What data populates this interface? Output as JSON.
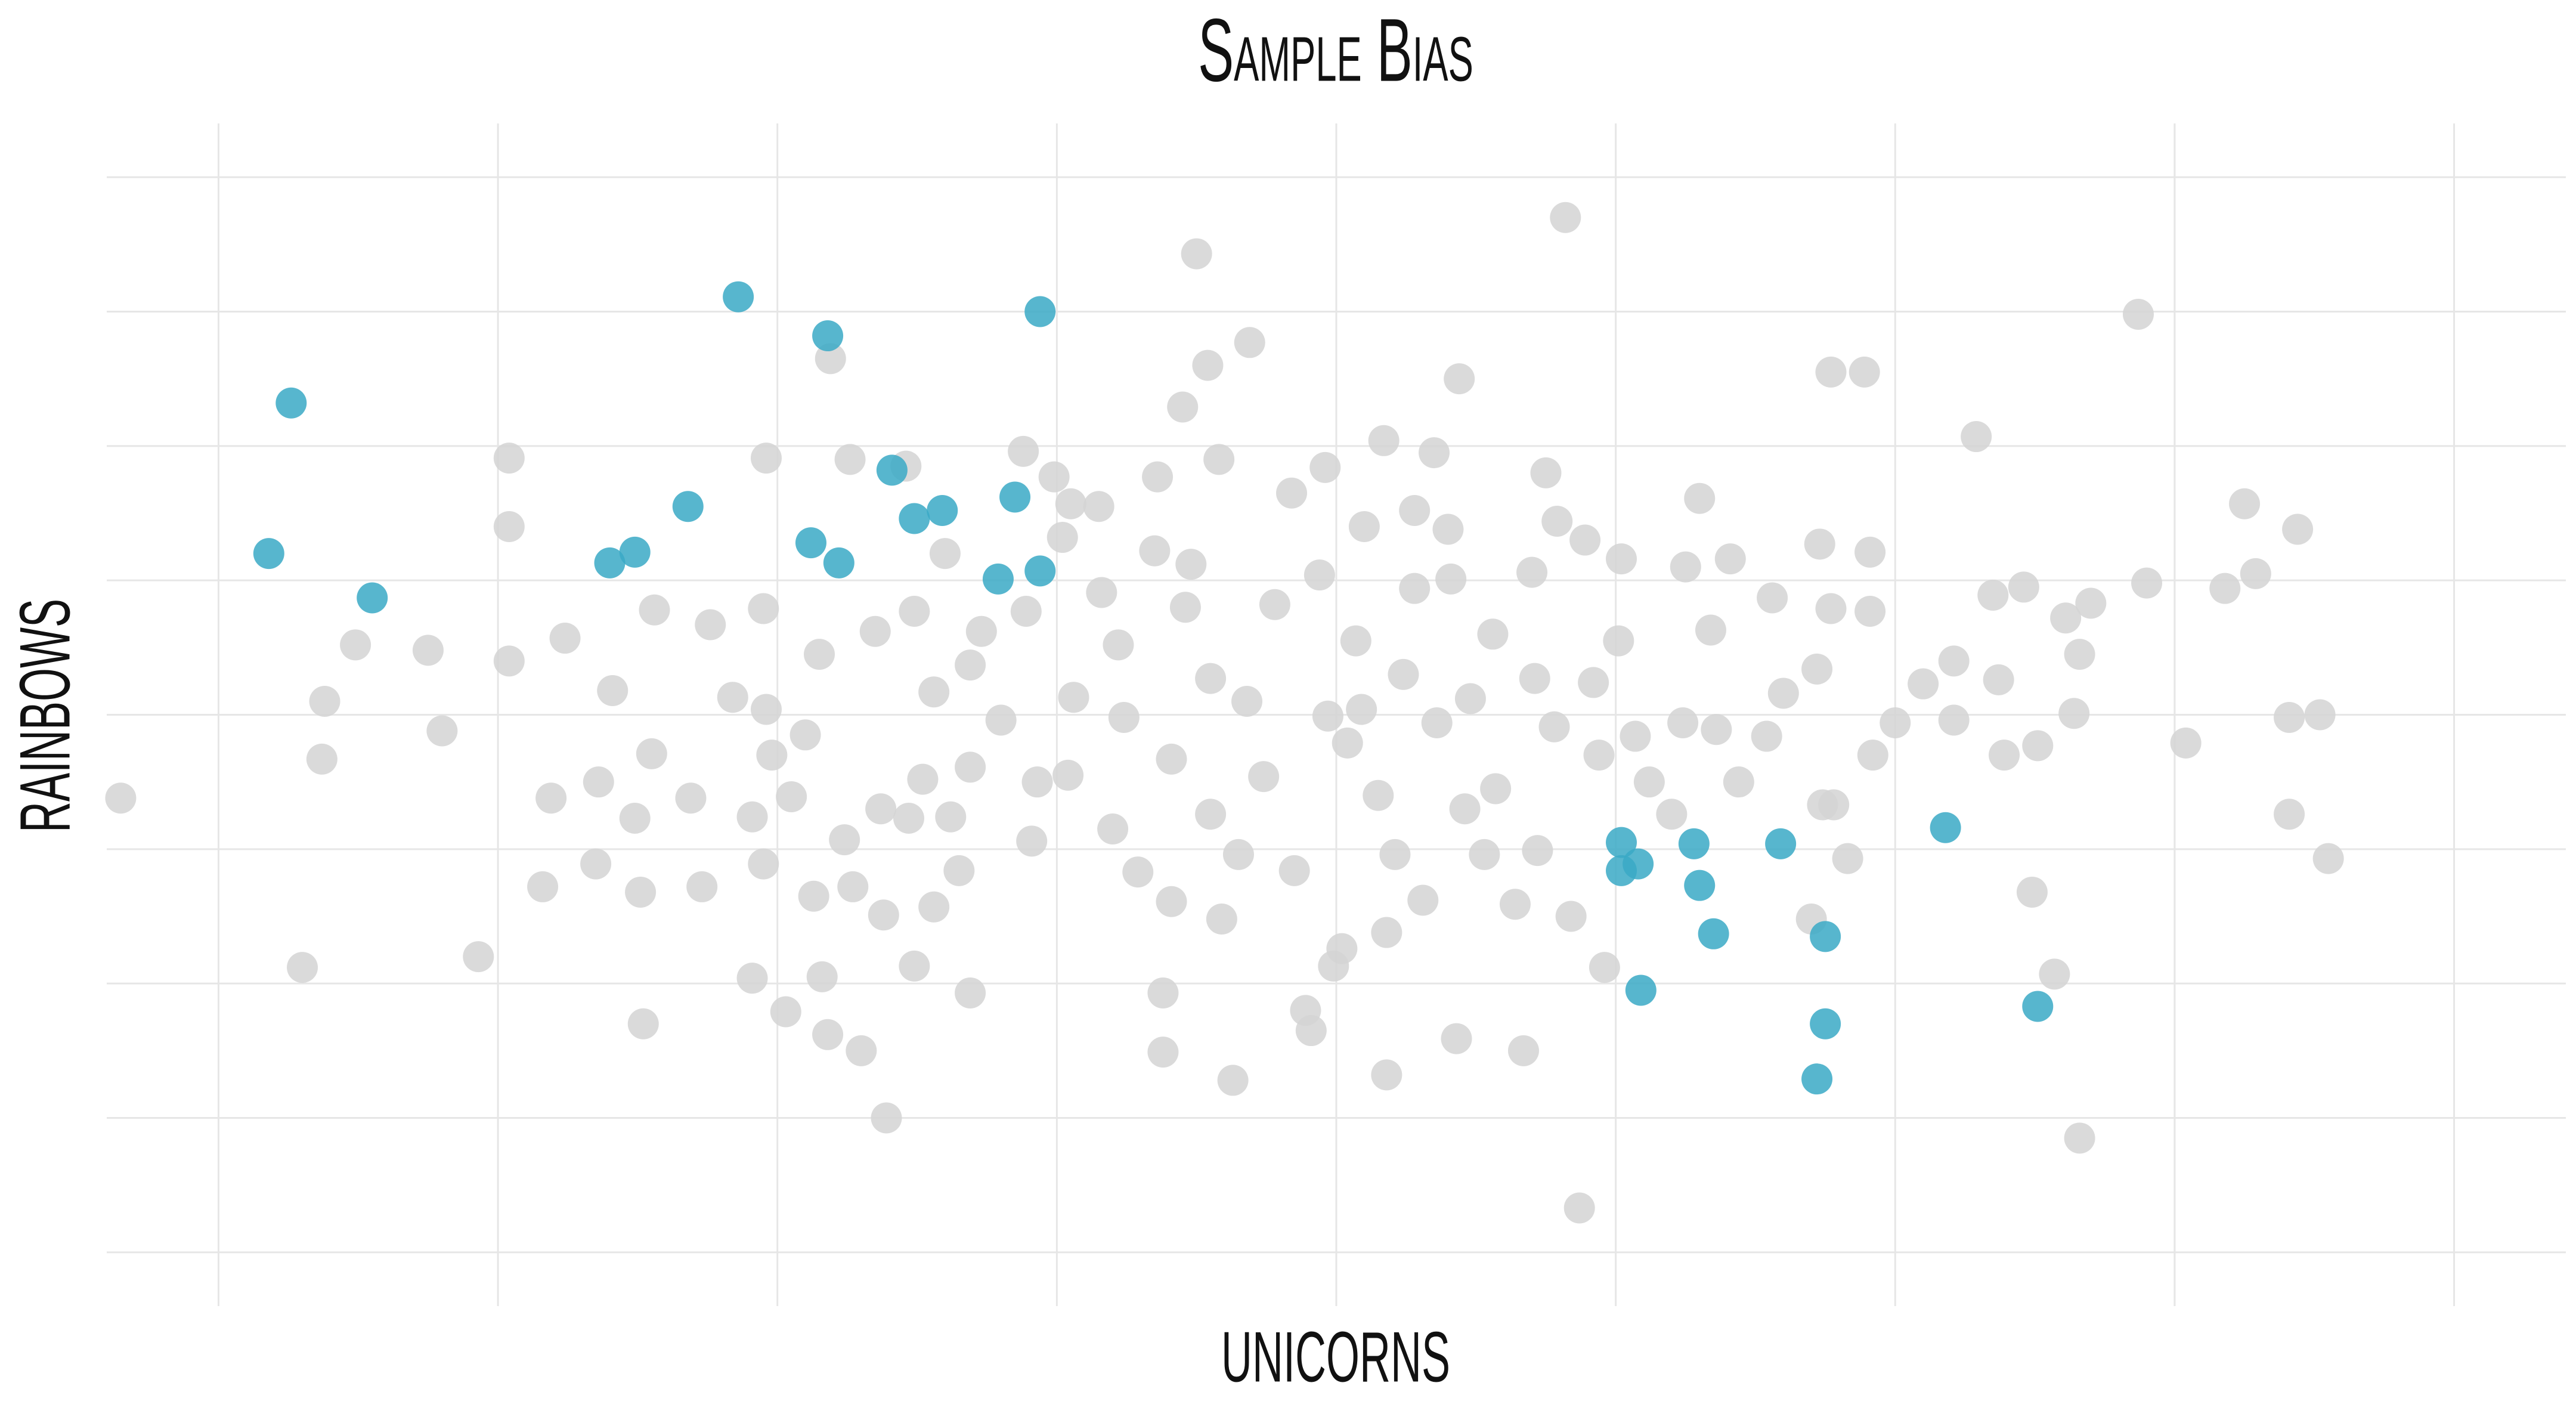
{
  "chart_data": {
    "type": "scatter",
    "title": "Sample Bias",
    "x_label": "UNICORNS",
    "y_label": "RAINBOWS",
    "xlim": [
      -4.4,
      4.4
    ],
    "ylim": [
      -4.4,
      4.4
    ],
    "xticks": [
      -4,
      -3,
      -2,
      -1,
      0,
      1,
      2,
      3,
      4
    ],
    "yticks": [
      -4,
      -3,
      -2,
      -1,
      0,
      1,
      2,
      3,
      4
    ],
    "grid": true,
    "series": [
      {
        "color": "#d3d3d3",
        "x": [
          -4.35,
          -3.7,
          -3.62,
          -3.63,
          -3.51,
          -3.25,
          -3.2,
          -3.07,
          -2.96,
          -2.96,
          -2.96,
          -2.81,
          -2.84,
          -2.76,
          -2.64,
          -2.65,
          -2.59,
          -2.51,
          -2.49,
          -2.48,
          -2.45,
          -2.44,
          -2.31,
          -2.27,
          -2.24,
          -2.16,
          -2.09,
          -2.09,
          -2.05,
          -2.04,
          -2.04,
          -2.02,
          -2.05,
          -1.97,
          -1.95,
          -1.9,
          -1.87,
          -1.85,
          -1.84,
          -1.82,
          -1.81,
          -1.76,
          -1.74,
          -1.73,
          -1.7,
          -1.65,
          -1.63,
          -1.61,
          -1.62,
          -1.54,
          -1.53,
          -1.51,
          -1.51,
          -1.48,
          -1.44,
          -1.44,
          -1.4,
          -1.38,
          -1.35,
          -1.31,
          -1.31,
          -1.27,
          -1.31,
          -1.2,
          -1.12,
          -1.11,
          -1.09,
          -1.07,
          -1.01,
          -0.98,
          -0.95,
          -0.96,
          -0.94,
          -0.85,
          -0.84,
          -0.78,
          -0.76,
          -0.8,
          -0.71,
          -0.65,
          -0.64,
          -0.62,
          -0.62,
          -0.59,
          -0.59,
          -0.55,
          -0.54,
          -0.52,
          -0.5,
          -0.46,
          -0.45,
          -0.45,
          -0.42,
          -0.41,
          -0.37,
          -0.35,
          -0.32,
          -0.31,
          -0.26,
          -0.22,
          -0.16,
          -0.15,
          -0.11,
          -0.09,
          -0.06,
          -0.04,
          -0.03,
          -0.01,
          0.02,
          0.04,
          0.07,
          0.09,
          0.1,
          0.15,
          0.17,
          0.18,
          0.18,
          0.21,
          0.24,
          0.28,
          0.28,
          0.31,
          0.35,
          0.36,
          0.4,
          0.41,
          0.43,
          0.44,
          0.46,
          0.48,
          0.53,
          0.56,
          0.57,
          0.64,
          0.67,
          0.7,
          0.71,
          0.72,
          0.75,
          0.78,
          0.79,
          0.82,
          0.84,
          0.87,
          0.89,
          0.92,
          0.94,
          0.96,
          1.01,
          1.02,
          1.07,
          1.12,
          1.2,
          1.24,
          1.25,
          1.3,
          1.34,
          1.36,
          1.41,
          1.44,
          1.54,
          1.56,
          1.6,
          1.7,
          1.72,
          1.73,
          1.74,
          1.77,
          1.77,
          1.78,
          1.83,
          1.89,
          1.91,
          1.91,
          1.92,
          2.0,
          2.1,
          2.21,
          2.21,
          2.29,
          2.35,
          2.37,
          2.39,
          2.46,
          2.49,
          2.51,
          2.57,
          2.61,
          2.64,
          2.66,
          2.66,
          2.7,
          2.87,
          2.9,
          3.04,
          3.18,
          3.25,
          3.29,
          3.41,
          3.41,
          3.44,
          3.52,
          3.55
        ],
        "values": [
          -0.62,
          -1.88,
          0.1,
          -0.33,
          0.52,
          0.48,
          -0.12,
          -1.8,
          1.91,
          1.4,
          0.4,
          -0.62,
          -1.28,
          0.57,
          -0.5,
          -1.11,
          0.18,
          -0.77,
          -1.32,
          -2.3,
          -0.29,
          0.78,
          -0.62,
          -1.28,
          0.67,
          0.13,
          -0.76,
          -1.96,
          0.79,
          1.91,
          0.04,
          -0.3,
          -1.11,
          -2.21,
          -0.61,
          -0.15,
          -1.35,
          0.45,
          -1.95,
          -2.38,
          2.65,
          -0.93,
          1.9,
          -1.28,
          -2.5,
          0.62,
          -0.7,
          -3.0,
          -1.49,
          1.85,
          -0.77,
          -1.87,
          0.77,
          -0.48,
          0.17,
          -1.43,
          1.2,
          -0.76,
          -1.16,
          -0.39,
          -2.07,
          0.62,
          0.37,
          -0.04,
          1.96,
          0.77,
          -0.94,
          -0.5,
          1.77,
          1.32,
          1.57,
          -0.45,
          0.13,
          1.55,
          0.91,
          0.52,
          -0.02,
          -0.85,
          -1.17,
          1.22,
          1.77,
          -2.07,
          -2.51,
          -1.39,
          -0.33,
          2.29,
          0.8,
          1.12,
          3.43,
          2.6,
          -0.74,
          0.27,
          1.9,
          -1.52,
          -2.72,
          -1.04,
          0.1,
          2.77,
          -0.46,
          0.82,
          1.65,
          -1.16,
          -2.2,
          -2.35,
          1.04,
          1.84,
          -0.01,
          -1.87,
          -1.74,
          -0.21,
          0.55,
          0.04,
          1.4,
          -0.6,
          2.04,
          -2.68,
          -1.62,
          -1.04,
          0.3,
          1.52,
          0.94,
          -1.38,
          1.95,
          -0.06,
          1.38,
          1.01,
          -2.41,
          2.5,
          -0.7,
          0.12,
          -1.04,
          0.6,
          -0.55,
          -1.41,
          -2.5,
          1.06,
          0.27,
          -1.01,
          1.8,
          -0.09,
          1.44,
          3.7,
          -1.5,
          -3.67,
          1.3,
          0.24,
          -0.3,
          -1.88,
          0.55,
          1.16,
          -0.16,
          -0.5,
          -0.74,
          -0.06,
          1.1,
          1.61,
          0.63,
          -0.11,
          1.16,
          -0.5,
          -0.16,
          0.87,
          0.16,
          -1.52,
          0.34,
          1.27,
          -0.67,
          0.79,
          2.55,
          -0.67,
          -1.07,
          2.55,
          1.21,
          0.77,
          -0.3,
          -0.06,
          0.23,
          -0.04,
          0.4,
          2.07,
          0.89,
          0.26,
          -0.3,
          0.95,
          -1.32,
          -0.23,
          -1.93,
          0.72,
          0.01,
          0.45,
          -3.15,
          0.83,
          2.98,
          0.98,
          -0.21,
          0.94,
          1.57,
          1.05,
          -0.74,
          -0.02,
          1.38,
          0.0,
          -1.07
        ]
      },
      {
        "color": "#3aa9c6",
        "x": [
          -3.74,
          -3.82,
          -3.45,
          -2.6,
          -2.51,
          -2.32,
          -2.14,
          -1.82,
          -1.88,
          -1.78,
          -1.59,
          -1.51,
          -1.41,
          -1.15,
          -1.21,
          -1.06,
          -1.06,
          1.02,
          1.08,
          1.02,
          1.28,
          1.3,
          1.35,
          1.09,
          1.59,
          1.75,
          1.75,
          1.72,
          2.18,
          2.51
        ],
        "values": [
          2.32,
          1.2,
          0.87,
          1.13,
          1.21,
          1.55,
          3.11,
          2.82,
          1.28,
          1.13,
          1.82,
          1.46,
          1.52,
          1.62,
          1.01,
          1.07,
          3.0,
          -0.95,
          -1.11,
          -1.16,
          -0.96,
          -1.27,
          -1.63,
          -2.05,
          -0.96,
          -1.65,
          -2.3,
          -2.71,
          -0.84,
          -2.17
        ]
      }
    ]
  }
}
